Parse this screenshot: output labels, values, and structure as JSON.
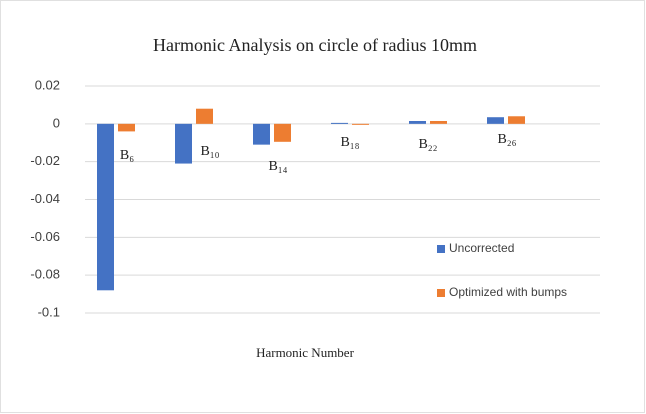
{
  "chart_data": {
    "type": "bar",
    "title": "Harmonic Analysis on circle of radius 10mm",
    "x_label": "Harmonic Number",
    "categories": [
      "B₆",
      "B₁₀",
      "B₁₄",
      "B₁₈",
      "B₂₂",
      "B₂₆"
    ],
    "series": [
      {
        "name": "Uncorrected",
        "color": "#4472c4",
        "values": [
          -0.088,
          -0.021,
          -0.011,
          0.0005,
          0.0015,
          0.0035
        ]
      },
      {
        "name": "Optimized with bumps",
        "color": "#ed7d31",
        "values": [
          -0.004,
          0.008,
          -0.0095,
          -0.0003,
          0.0015,
          0.004
        ]
      }
    ],
    "ylim": [
      -0.1,
      0.02
    ],
    "yticks": [
      0.02,
      0,
      -0.02,
      -0.04,
      -0.06,
      -0.08,
      -0.1
    ],
    "grid": true,
    "legend": "right"
  }
}
